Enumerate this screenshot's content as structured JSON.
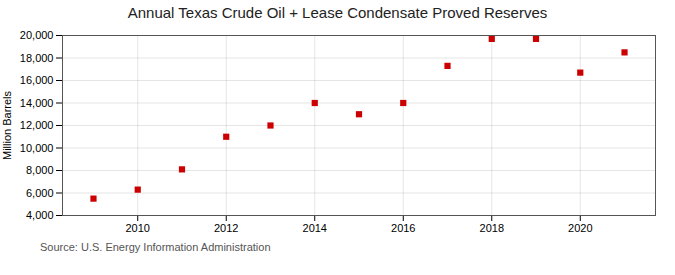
{
  "chart_data": {
    "type": "scatter",
    "title": "Annual Texas Crude Oil + Lease Condensate Proved Reserves",
    "ylabel": "Million Barrels",
    "source": "Source: U.S. Energy Information Administration",
    "x": [
      2009,
      2010,
      2011,
      2012,
      2013,
      2014,
      2015,
      2016,
      2017,
      2018,
      2019,
      2020,
      2021
    ],
    "values": [
      5500,
      6300,
      8100,
      11000,
      12000,
      14000,
      13000,
      14000,
      17300,
      19700,
      19700,
      16700,
      18500
    ],
    "color": "#CC0000",
    "marker": "square",
    "xlim": [
      2008.3,
      2021.7
    ],
    "xticks": [
      2010,
      2012,
      2014,
      2016,
      2018,
      2020
    ],
    "ylim": [
      4000,
      20000
    ],
    "yticks": [
      {
        "value": 4000,
        "label": "4,000"
      },
      {
        "value": 6000,
        "label": "6,000"
      },
      {
        "value": 8000,
        "label": "8,000"
      },
      {
        "value": 10000,
        "label": "10,000"
      },
      {
        "value": 12000,
        "label": "12,000"
      },
      {
        "value": 14000,
        "label": "14,000"
      },
      {
        "value": 16000,
        "label": "16,000"
      },
      {
        "value": 18000,
        "label": "18,000"
      },
      {
        "value": 20000,
        "label": "20,000"
      }
    ],
    "grid": true
  }
}
